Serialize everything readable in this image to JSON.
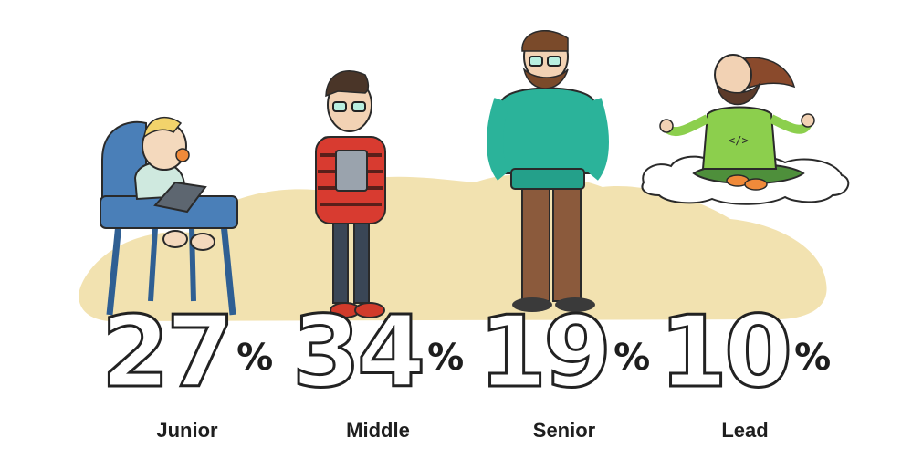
{
  "stats": [
    {
      "level": "Junior",
      "value": 27,
      "percent_text": "27",
      "percent_sign": "%"
    },
    {
      "level": "Middle",
      "value": 34,
      "percent_text": "34",
      "percent_sign": "%"
    },
    {
      "level": "Senior",
      "value": 19,
      "percent_text": "19",
      "percent_sign": "%"
    },
    {
      "level": "Lead",
      "value": 10,
      "percent_text": "10",
      "percent_sign": "%"
    }
  ],
  "colors": {
    "background_blob": "#f2e2b0",
    "cloud": "#ffffff",
    "text": "#1e1e1e",
    "highchair": "#4a7fb8",
    "hoodie": "#2bb39a",
    "pants_brown": "#8b5a3c",
    "lead_shirt": "#8ccf4d"
  },
  "icons": [
    "baby-junior-illustration",
    "teen-middle-illustration",
    "bearded-senior-illustration",
    "meditating-lead-illustration"
  ]
}
